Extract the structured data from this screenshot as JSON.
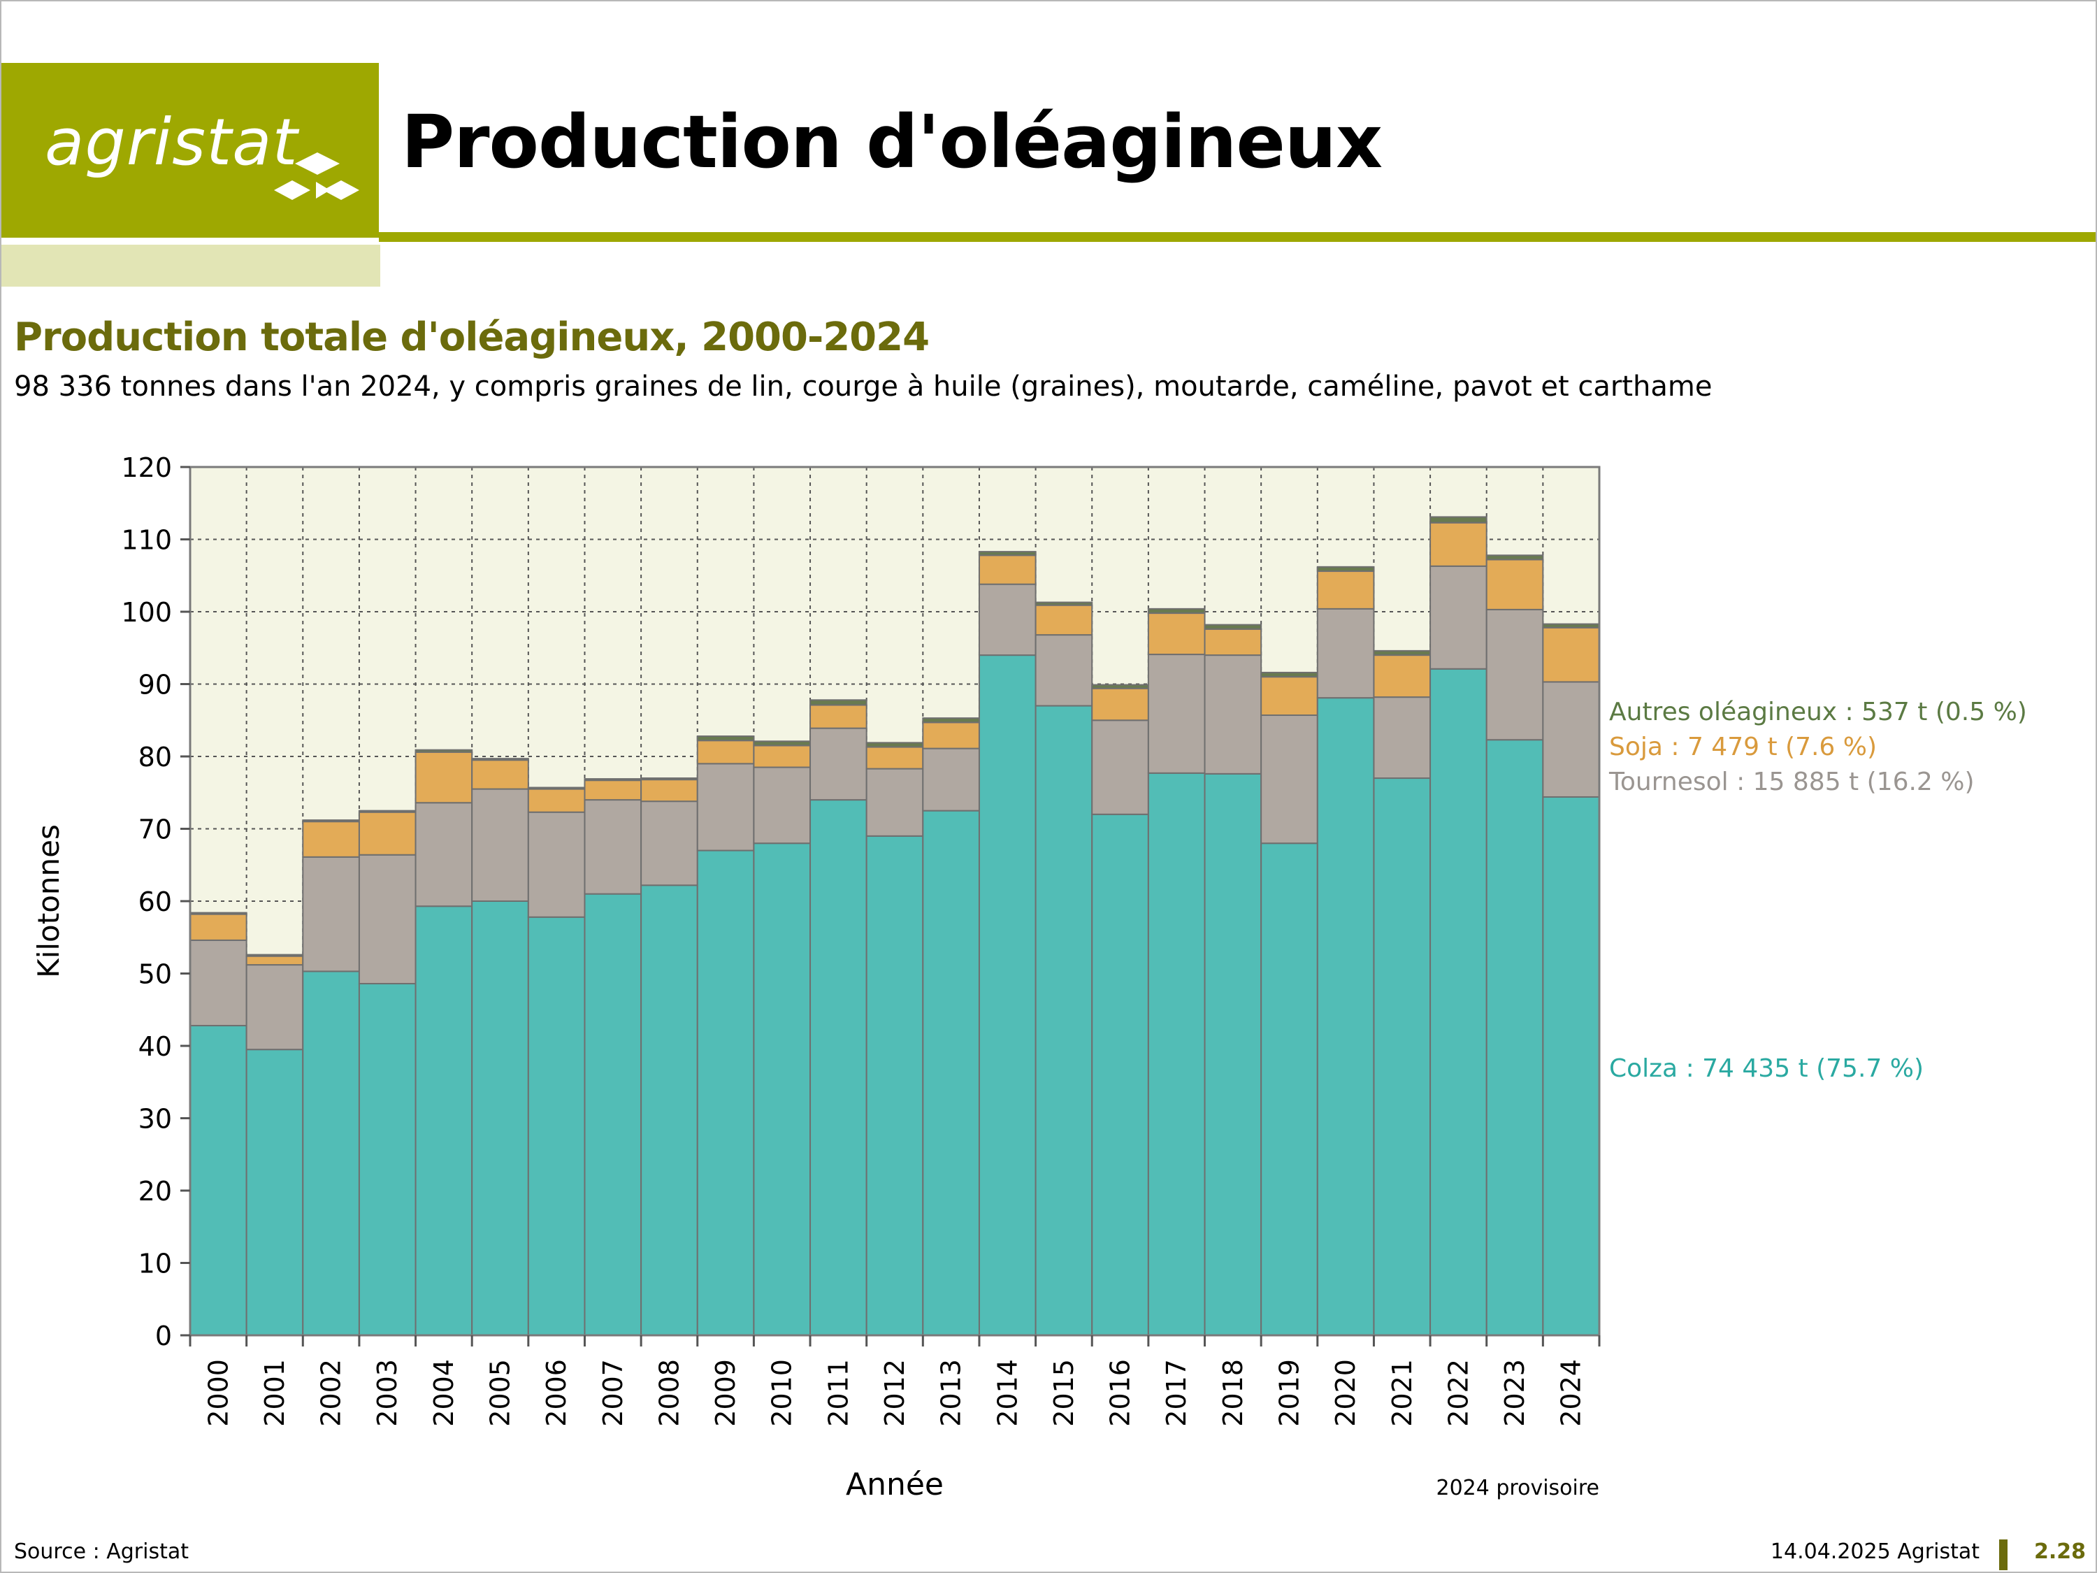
{
  "header": {
    "logo_text": "agristat",
    "page_title": "Production d'oléagineux"
  },
  "chart_data": {
    "type": "bar",
    "stacked": true,
    "title": "Production totale d'oléagineux, 2000-2024",
    "subtitle": "98 336 tonnes dans l'an 2024, y compris graines de lin, courge à huile (graines), moutarde, caméline, pavot et carthame",
    "xlabel": "Année",
    "ylabel": "Kilotonnes",
    "ylim": [
      0,
      120
    ],
    "yticks": [
      0,
      10,
      20,
      30,
      40,
      50,
      60,
      70,
      80,
      90,
      100,
      110,
      120
    ],
    "grid": true,
    "note": "2024 provisoire",
    "categories": [
      "2000",
      "2001",
      "2002",
      "2003",
      "2004",
      "2005",
      "2006",
      "2007",
      "2008",
      "2009",
      "2010",
      "2011",
      "2012",
      "2013",
      "2014",
      "2015",
      "2016",
      "2017",
      "2018",
      "2019",
      "2020",
      "2021",
      "2022",
      "2023",
      "2024"
    ],
    "series": [
      {
        "name": "Colza",
        "color": "#52bdb6",
        "values": [
          42.8,
          39.5,
          50.3,
          48.6,
          59.3,
          60.0,
          57.8,
          61.0,
          62.2,
          67.0,
          68.0,
          74.0,
          69.0,
          72.5,
          94.0,
          87.0,
          72.0,
          77.7,
          77.6,
          68.0,
          88.1,
          77.0,
          92.1,
          82.3,
          74.4
        ]
      },
      {
        "name": "Tournesol",
        "color": "#b0a8a1",
        "values": [
          11.8,
          11.7,
          15.8,
          17.8,
          14.3,
          15.5,
          14.5,
          13.0,
          11.6,
          12.0,
          10.5,
          9.9,
          9.3,
          8.6,
          9.8,
          9.8,
          13.0,
          16.4,
          16.4,
          17.7,
          12.3,
          11.2,
          14.2,
          18.0,
          15.9
        ]
      },
      {
        "name": "Soja",
        "color": "#e3ab57",
        "values": [
          3.6,
          1.2,
          4.9,
          5.9,
          7.0,
          4.0,
          3.2,
          2.7,
          3.0,
          3.2,
          3.0,
          3.2,
          3.0,
          3.6,
          4.0,
          4.1,
          4.4,
          5.7,
          3.6,
          5.3,
          5.2,
          5.8,
          6.0,
          6.9,
          7.5
        ]
      },
      {
        "name": "Autres oléagineux",
        "color": "#687a50",
        "values": [
          0.2,
          0.2,
          0.2,
          0.2,
          0.3,
          0.2,
          0.2,
          0.2,
          0.2,
          0.6,
          0.6,
          0.7,
          0.6,
          0.6,
          0.5,
          0.4,
          0.5,
          0.6,
          0.6,
          0.6,
          0.6,
          0.6,
          0.8,
          0.6,
          0.5
        ]
      }
    ],
    "end_labels": [
      {
        "series": "Autres oléagineux",
        "text": "Autres oléagineux : 537 t (0.5 %)",
        "color": "#5b7a43"
      },
      {
        "series": "Soja",
        "text": "Soja : 7 479 t (7.6 %)",
        "color": "#d99a3c"
      },
      {
        "series": "Tournesol",
        "text": "Tournesol : 15 885 t (16.2 %)",
        "color": "#9a9591"
      },
      {
        "series": "Colza",
        "text": "Colza : 74 435 t (75.7 %)",
        "color": "#2aa9a1"
      }
    ],
    "plot_background": "#f4f5e4"
  },
  "footer": {
    "source": "Source : Agristat",
    "date": "14.04.2025 Agristat",
    "page_number": "2.28"
  }
}
